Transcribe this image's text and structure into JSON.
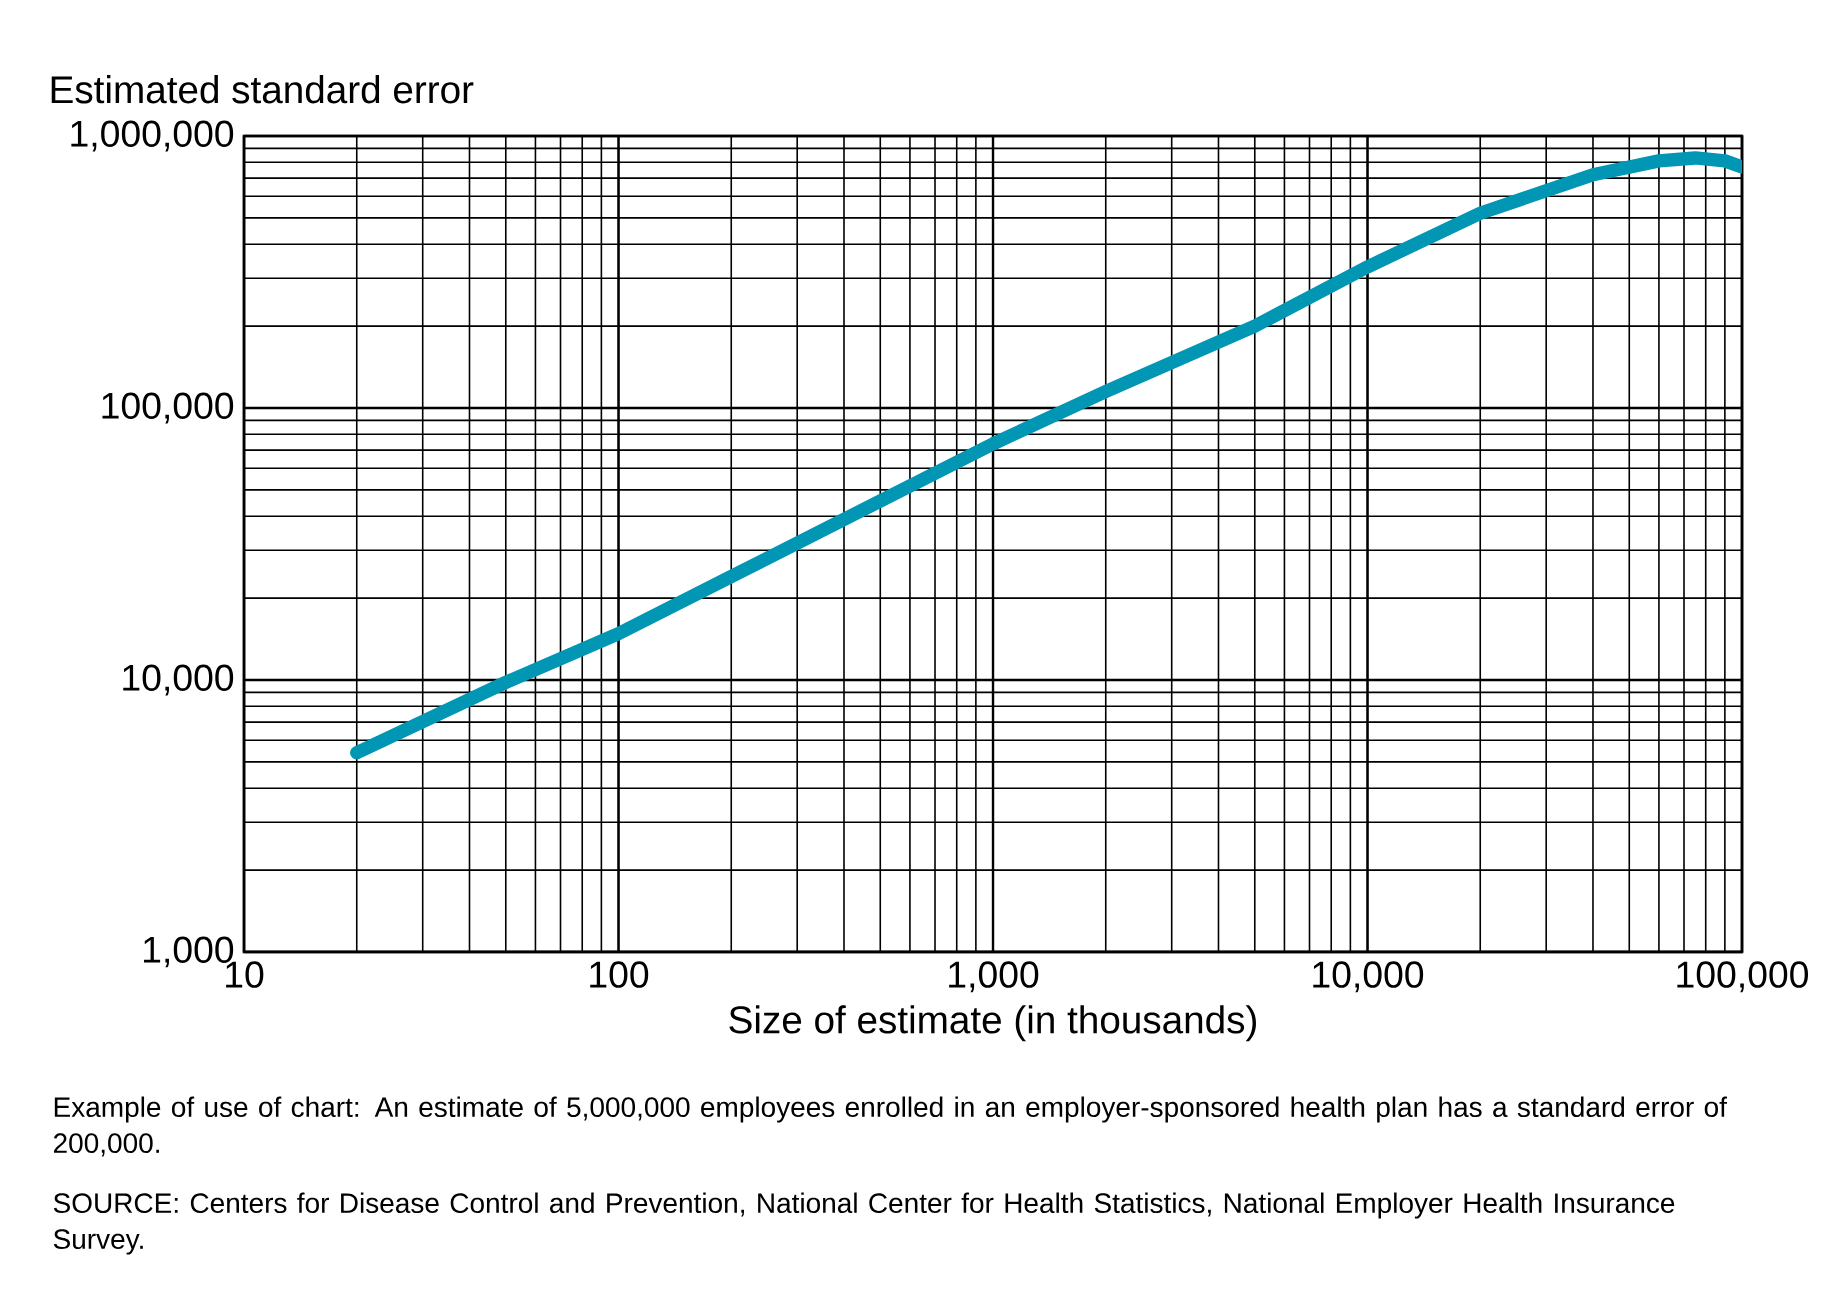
{
  "chart_data": {
    "type": "line",
    "ylabel": "Estimated standard error",
    "xlabel": "Size of estimate (in thousands)",
    "log": "xy",
    "grid": true,
    "line_style": "solid",
    "x": [
      20,
      50,
      100,
      200,
      500,
      1000,
      2000,
      5000,
      10000,
      20000,
      40000,
      60000,
      75000,
      90000,
      100000
    ],
    "series": [
      {
        "color": "#0096b4",
        "values": [
          5400,
          9800,
          14800,
          24000,
          45500,
          73800,
          115000,
          200000,
          330000,
          520000,
          720000,
          810000,
          830000,
          810000,
          770000
        ]
      }
    ],
    "xlim": [
      10,
      100000
    ],
    "ylim": [
      1000,
      1000000
    ],
    "xticks": [
      {
        "value": 10,
        "label": "10"
      },
      {
        "value": 100,
        "label": "100"
      },
      {
        "value": 1000,
        "label": "1,000"
      },
      {
        "value": 10000,
        "label": "10,000"
      },
      {
        "value": 100000,
        "label": "100,000"
      }
    ],
    "yticks": [
      {
        "value": 1000,
        "label": "1,000"
      },
      {
        "value": 10000,
        "label": "10,000"
      },
      {
        "value": 100000,
        "label": "100,000"
      },
      {
        "value": 1000000,
        "label": "1,000,000"
      }
    ],
    "annotations": [
      "Example of use of chart: An estimate of 5,000,000 employees enrolled in an employer-sponsored health plan has a standard error of 200,000.",
      "SOURCE: Centers for Disease Control and Prevention, National Center for Health Statistics, National Employer Health Insurance Survey."
    ]
  }
}
